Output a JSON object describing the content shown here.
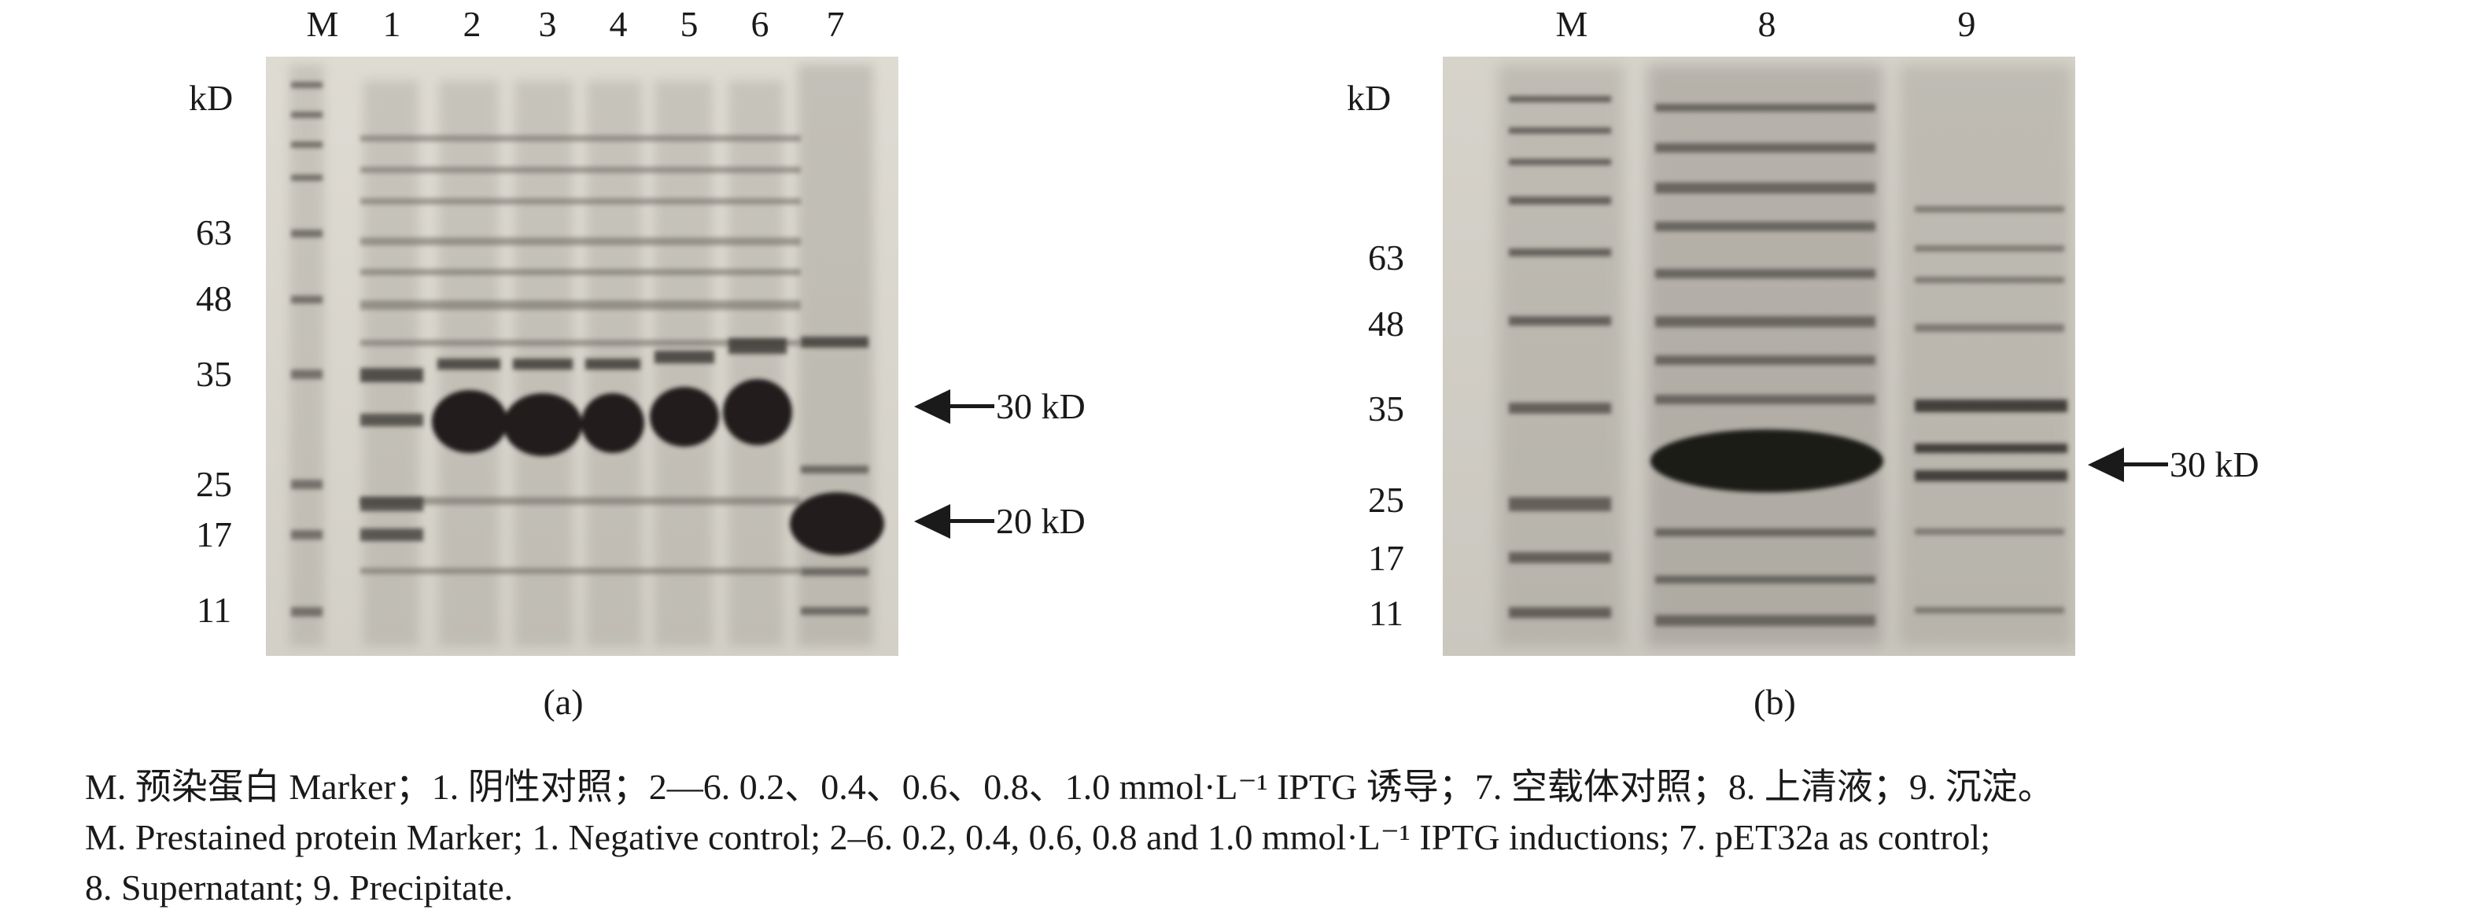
{
  "panel_a": {
    "label": "(a)",
    "kd_label": "kD",
    "lanes": [
      "M",
      "1",
      "2",
      "3",
      "4",
      "5",
      "6",
      "7"
    ],
    "markers": [
      "63",
      "48",
      "35",
      "25",
      "17",
      "11"
    ],
    "arrows": [
      {
        "text": "30 kD"
      },
      {
        "text": "20 kD"
      }
    ]
  },
  "panel_b": {
    "label": "(b)",
    "kd_label": "kD",
    "lanes": [
      "M",
      "8",
      "9"
    ],
    "markers": [
      "63",
      "48",
      "35",
      "25",
      "17",
      "11"
    ],
    "arrows": [
      {
        "text": "30 kD"
      }
    ]
  },
  "caption": {
    "line1": "M. 预染蛋白 Marker；1. 阴性对照；2—6. 0.2、0.4、0.6、0.8、1.0 mmol·L⁻¹ IPTG 诱导；7. 空载体对照；8. 上清液；9. 沉淀。",
    "line2": "M. Prestained protein Marker; 1. Negative control; 2–6. 0.2, 0.4, 0.6, 0.8 and 1.0 mmol·L⁻¹ IPTG inductions; 7. pET32a as control;",
    "line3": "8. Supernatant; 9. Precipitate."
  },
  "colors": {
    "gel_a_background": "#d9d6cc",
    "gel_b_background": "#cfccc3",
    "band": "#3a3632",
    "text": "#1a1a1a"
  }
}
